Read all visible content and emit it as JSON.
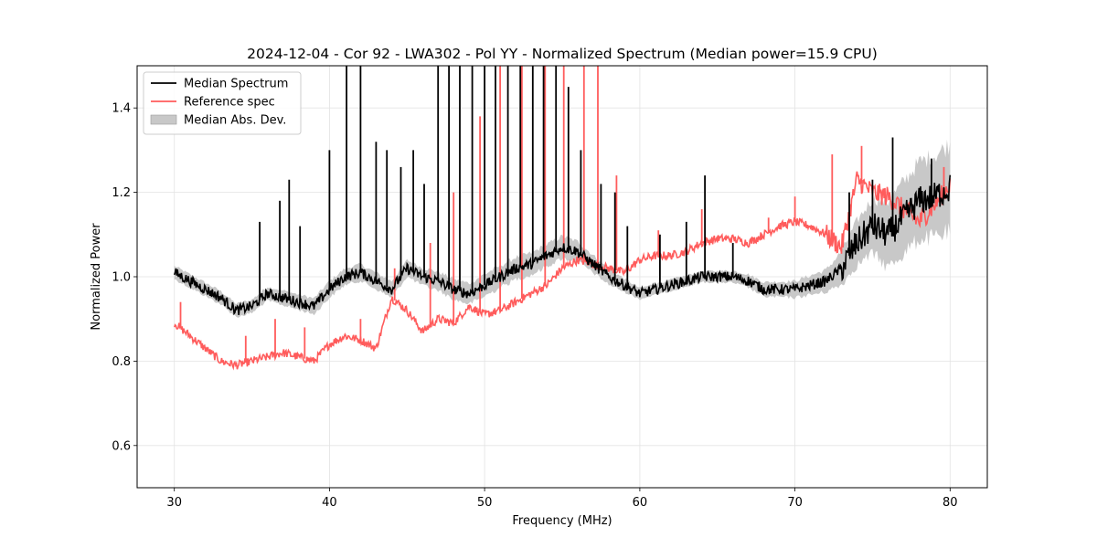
{
  "chart_data": {
    "type": "line",
    "title": "2024-12-04 - Cor 92 - LWA302 - Pol YY - Normalized Spectrum (Median power=15.9 CPU)",
    "xlabel": "Frequency (MHz)",
    "ylabel": "Normalized Power",
    "xlim": [
      27.6,
      82.4
    ],
    "ylim": [
      0.5,
      1.5
    ],
    "xticks": [
      30,
      40,
      50,
      60,
      70,
      80
    ],
    "yticks": [
      0.6,
      0.8,
      1.0,
      1.2,
      1.4
    ],
    "xtick_labels": [
      "30",
      "40",
      "50",
      "60",
      "70",
      "80"
    ],
    "ytick_labels": [
      "0.6",
      "0.8",
      "1.0",
      "1.2",
      "1.4"
    ],
    "grid": true,
    "legend_position": "top-left",
    "legend": [
      {
        "label": "Median Spectrum",
        "kind": "line",
        "color": "#000000"
      },
      {
        "label": "Reference spec",
        "kind": "line",
        "color": "#ff5c5c"
      },
      {
        "label": "Median Abs. Dev.",
        "kind": "patch",
        "color": "#c8c8c8"
      }
    ],
    "series": [
      {
        "name": "Median Spectrum",
        "color": "#000000",
        "x": [
          30,
          31,
          32,
          33,
          34,
          35,
          36,
          37,
          38,
          39,
          40,
          41,
          42,
          43,
          44,
          45,
          46,
          47,
          48,
          49,
          50,
          51,
          52,
          53,
          54,
          55,
          56,
          57,
          58,
          59,
          60,
          61,
          62,
          63,
          64,
          65,
          66,
          67,
          68,
          69,
          70,
          71,
          72,
          73,
          74,
          75,
          76,
          77,
          78,
          79,
          80
        ],
        "y": [
          1.01,
          0.99,
          0.97,
          0.95,
          0.92,
          0.93,
          0.96,
          0.95,
          0.94,
          0.93,
          0.97,
          1.0,
          1.01,
          0.99,
          0.97,
          1.02,
          1.0,
          0.99,
          0.97,
          0.96,
          0.98,
          1.0,
          1.02,
          1.03,
          1.05,
          1.07,
          1.06,
          1.03,
          1.0,
          0.98,
          0.96,
          0.97,
          0.98,
          0.99,
          1.0,
          1.0,
          1.0,
          0.99,
          0.97,
          0.97,
          0.97,
          0.98,
          0.99,
          1.02,
          1.08,
          1.12,
          1.1,
          1.14,
          1.18,
          1.19,
          1.21
        ],
        "spikes": [
          {
            "x": 35.5,
            "y": 1.13
          },
          {
            "x": 36.8,
            "y": 1.18
          },
          {
            "x": 37.4,
            "y": 1.23
          },
          {
            "x": 38.1,
            "y": 1.12
          },
          {
            "x": 40.0,
            "y": 1.3
          },
          {
            "x": 41.1,
            "y": 1.5
          },
          {
            "x": 42.0,
            "y": 1.5
          },
          {
            "x": 43.0,
            "y": 1.32
          },
          {
            "x": 43.7,
            "y": 1.3
          },
          {
            "x": 44.6,
            "y": 1.26
          },
          {
            "x": 45.4,
            "y": 1.3
          },
          {
            "x": 46.1,
            "y": 1.22
          },
          {
            "x": 47.0,
            "y": 1.5
          },
          {
            "x": 47.7,
            "y": 1.5
          },
          {
            "x": 48.4,
            "y": 1.5
          },
          {
            "x": 49.2,
            "y": 1.5
          },
          {
            "x": 50.0,
            "y": 1.5
          },
          {
            "x": 50.7,
            "y": 1.5
          },
          {
            "x": 51.5,
            "y": 1.5
          },
          {
            "x": 52.3,
            "y": 1.5
          },
          {
            "x": 53.1,
            "y": 1.5
          },
          {
            "x": 53.8,
            "y": 1.5
          },
          {
            "x": 54.6,
            "y": 1.5
          },
          {
            "x": 55.4,
            "y": 1.45
          },
          {
            "x": 56.2,
            "y": 1.3
          },
          {
            "x": 57.5,
            "y": 1.22
          },
          {
            "x": 58.4,
            "y": 1.2
          },
          {
            "x": 59.2,
            "y": 1.12
          },
          {
            "x": 61.3,
            "y": 1.1
          },
          {
            "x": 63.0,
            "y": 1.13
          },
          {
            "x": 64.2,
            "y": 1.24
          },
          {
            "x": 66.0,
            "y": 1.08
          },
          {
            "x": 73.5,
            "y": 1.2
          },
          {
            "x": 75.0,
            "y": 1.23
          },
          {
            "x": 76.3,
            "y": 1.33
          },
          {
            "x": 78.8,
            "y": 1.28
          }
        ]
      },
      {
        "name": "Reference spec",
        "color": "#ff5c5c",
        "x": [
          30,
          31,
          32,
          33,
          34,
          35,
          36,
          37,
          38,
          39,
          40,
          41,
          42,
          43,
          44,
          45,
          46,
          47,
          48,
          49,
          50,
          51,
          52,
          53,
          54,
          55,
          56,
          57,
          58,
          59,
          60,
          61,
          62,
          63,
          64,
          65,
          66,
          67,
          68,
          69,
          70,
          71,
          72,
          73,
          74,
          75,
          76,
          77,
          78,
          79,
          80
        ],
        "y": [
          0.89,
          0.86,
          0.83,
          0.8,
          0.79,
          0.8,
          0.81,
          0.82,
          0.81,
          0.8,
          0.84,
          0.86,
          0.85,
          0.83,
          0.95,
          0.92,
          0.87,
          0.9,
          0.89,
          0.93,
          0.91,
          0.92,
          0.94,
          0.96,
          0.98,
          1.02,
          1.04,
          1.03,
          1.02,
          1.01,
          1.04,
          1.05,
          1.05,
          1.06,
          1.08,
          1.09,
          1.09,
          1.08,
          1.1,
          1.12,
          1.13,
          1.12,
          1.1,
          1.07,
          1.23,
          1.2,
          1.19,
          1.16,
          1.13,
          1.17,
          1.22
        ],
        "spikes": [
          {
            "x": 30.4,
            "y": 0.94
          },
          {
            "x": 34.6,
            "y": 0.86
          },
          {
            "x": 36.5,
            "y": 0.9
          },
          {
            "x": 38.4,
            "y": 0.88
          },
          {
            "x": 42.0,
            "y": 0.9
          },
          {
            "x": 44.2,
            "y": 1.02
          },
          {
            "x": 46.5,
            "y": 1.08
          },
          {
            "x": 48.0,
            "y": 1.2
          },
          {
            "x": 49.7,
            "y": 1.38
          },
          {
            "x": 51.0,
            "y": 1.5
          },
          {
            "x": 52.4,
            "y": 1.5
          },
          {
            "x": 53.9,
            "y": 1.5
          },
          {
            "x": 55.1,
            "y": 1.5
          },
          {
            "x": 56.4,
            "y": 1.5
          },
          {
            "x": 57.3,
            "y": 1.5
          },
          {
            "x": 58.5,
            "y": 1.24
          },
          {
            "x": 61.2,
            "y": 1.11
          },
          {
            "x": 64.0,
            "y": 1.16
          },
          {
            "x": 68.3,
            "y": 1.14
          },
          {
            "x": 70.0,
            "y": 1.19
          },
          {
            "x": 72.4,
            "y": 1.29
          },
          {
            "x": 74.3,
            "y": 1.31
          },
          {
            "x": 79.6,
            "y": 1.26
          }
        ]
      }
    ],
    "band": {
      "name": "Median Abs. Dev.",
      "color": "#c8c8c8",
      "x": [
        30,
        35,
        40,
        45,
        50,
        55,
        60,
        65,
        70,
        72,
        74,
        76,
        78,
        80
      ],
      "half_width": [
        0.012,
        0.012,
        0.015,
        0.015,
        0.02,
        0.02,
        0.01,
        0.01,
        0.015,
        0.02,
        0.04,
        0.06,
        0.07,
        0.08
      ]
    }
  }
}
